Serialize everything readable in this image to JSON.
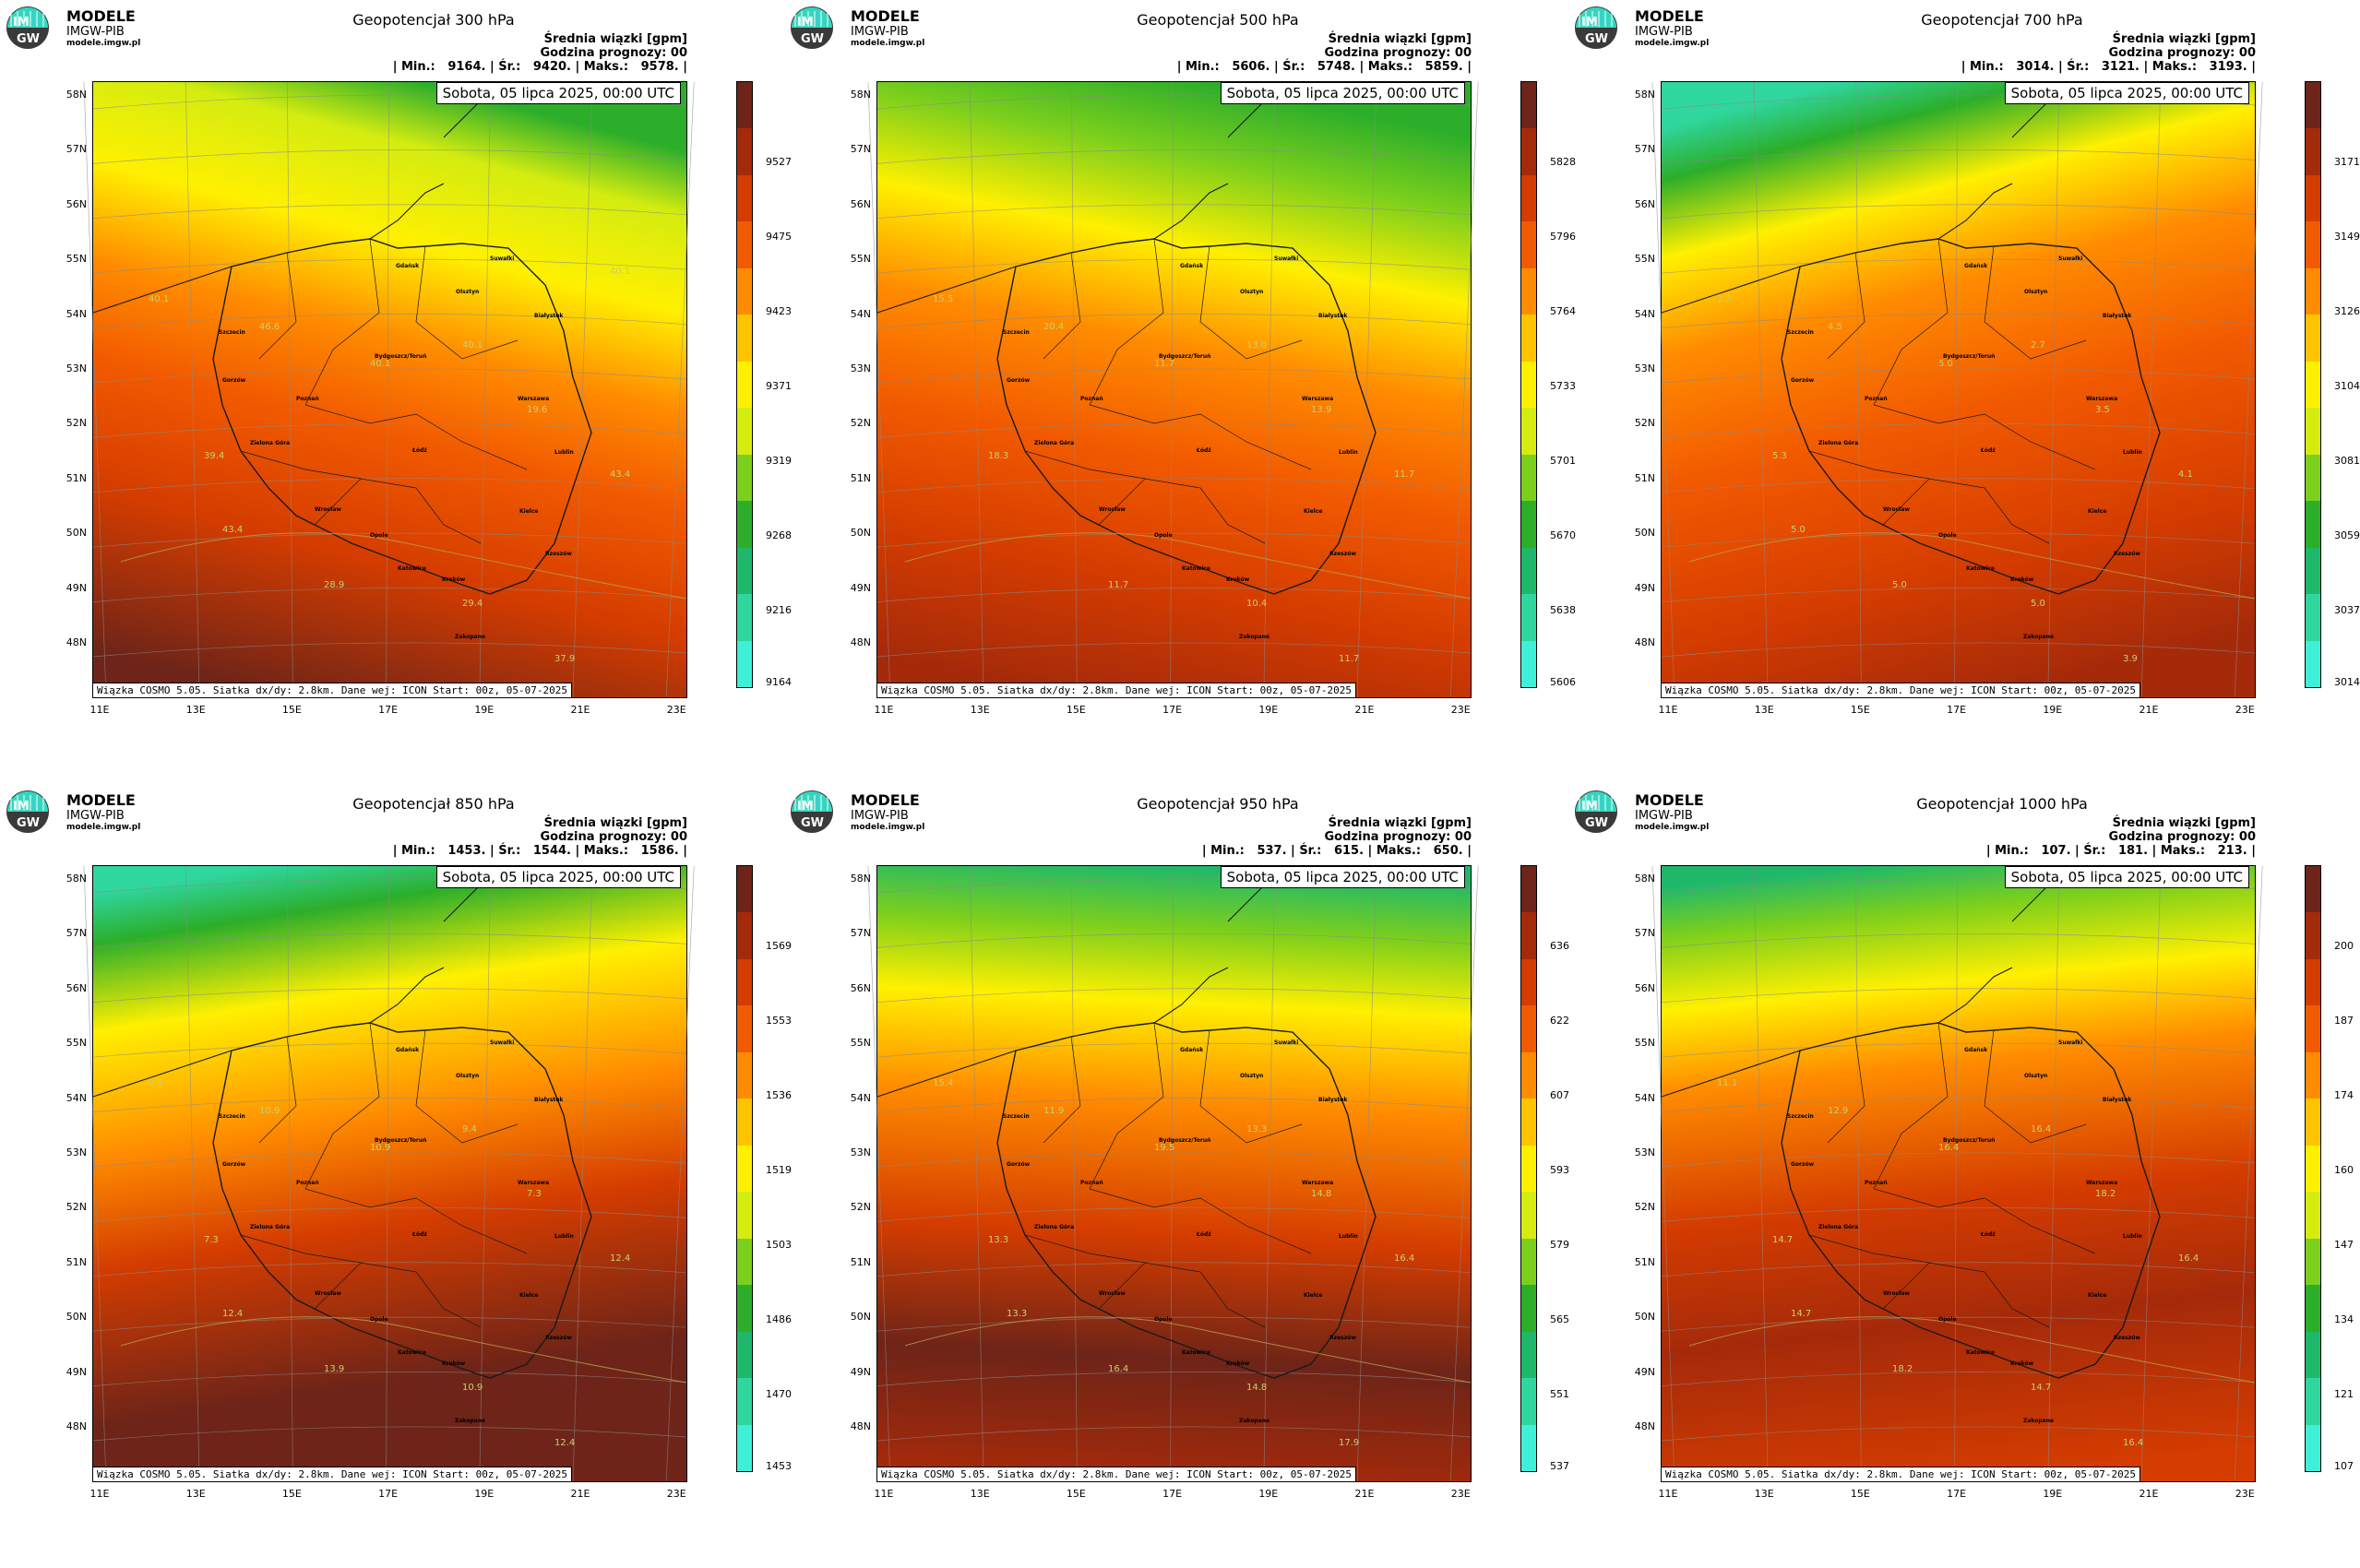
{
  "logo": {
    "line1": "MODELE",
    "line2": "IMGW-PIB",
    "line3": "modele.imgw.pl",
    "emblem_top": "IM",
    "emblem_bottom": "GW"
  },
  "common": {
    "mean_label": "Średnia wiązki [gpm]",
    "forecast_hour": "Godzina prognozy: 00",
    "date": "Sobota, 05 lipca 2025, 00:00 UTC",
    "footer": "Wiązka COSMO 5.05. Siatka dx/dy: 2.8km. Dane wej: ICON Start: 00z, 05-07-2025",
    "lat_labels": [
      "58N",
      "57N",
      "56N",
      "55N",
      "54N",
      "53N",
      "52N",
      "51N",
      "50N",
      "49N",
      "48N"
    ],
    "lon_labels": [
      "11E",
      "13E",
      "15E",
      "17E",
      "19E",
      "21E",
      "23E"
    ],
    "cities": [
      "Gdańsk",
      "Suwałki",
      "Olsztyn",
      "Białystok",
      "Szczecin",
      "Bydgoszcz/Toruń",
      "Gorzów",
      "Poznań",
      "Warszawa",
      "Zielona Góra",
      "Łódź",
      "Lublin",
      "Wrocław",
      "Kielce",
      "Opole",
      "Rzeszów",
      "Katowice",
      "Kraków",
      "Zakopane"
    ]
  },
  "colors": {
    "ramp": [
      "#3ef0d8",
      "#2fd69e",
      "#1fb86a",
      "#2cae2a",
      "#7ccf1c",
      "#d4ec10",
      "#fff000",
      "#ffc400",
      "#ff8c00",
      "#f25a00",
      "#d43c00",
      "#a52a0a",
      "#6e2418"
    ]
  },
  "panels": [
    {
      "title": "Geopotencjał 300 hPa",
      "stats": "| Min.:   9164. | Śr.:   9420. | Maks.:   9578. |",
      "ticks": [
        "9527",
        "9475",
        "9423",
        "9371",
        "9319",
        "9268",
        "9216",
        "9164"
      ],
      "contours": [
        "40.1",
        "39.4",
        "46.6",
        "40.1",
        "19.6",
        "43.4",
        "29.4",
        "37.9",
        "28.9",
        "40.1",
        "43.4",
        "40.1"
      ]
    },
    {
      "title": "Geopotencjał 500 hPa",
      "stats": "| Min.:   5606. | Śr.:   5748. | Maks.:   5859. |",
      "ticks": [
        "5828",
        "5796",
        "5764",
        "5733",
        "5701",
        "5670",
        "5638",
        "5606"
      ],
      "contours": [
        "15.5",
        "18.3",
        "20.4",
        "13.0",
        "13.9",
        "11.7",
        "10.4",
        "11.7",
        "11.7",
        "11.7"
      ]
    },
    {
      "title": "Geopotencjał 700 hPa",
      "stats": "| Min.:   3014. | Śr.:   3121. | Maks.:   3193. |",
      "ticks": [
        "3171",
        "3149",
        "3126",
        "3104",
        "3081",
        "3059",
        "3037",
        "3014"
      ],
      "contours": [
        "3.3",
        "5.3",
        "4.5",
        "2.7",
        "3.5",
        "4.1",
        "5.0",
        "3.9",
        "5.0",
        "5.0",
        "5.0"
      ]
    },
    {
      "title": "Geopotencjał 850 hPa",
      "stats": "| Min.:   1453. | Śr.:   1544. | Maks.:   1586. |",
      "ticks": [
        "1569",
        "1553",
        "1536",
        "1519",
        "1503",
        "1486",
        "1470",
        "1453"
      ],
      "contours": [
        "9.4",
        "7.3",
        "10.9",
        "9.4",
        "7.3",
        "12.4",
        "10.9",
        "12.4",
        "13.9",
        "10.9",
        "12.4"
      ]
    },
    {
      "title": "Geopotencjał 950 hPa",
      "stats": "| Min.:   537. | Śr.:   615. | Maks.:   650. |",
      "ticks": [
        "636",
        "622",
        "607",
        "593",
        "579",
        "565",
        "551",
        "537"
      ],
      "contours": [
        "15.4",
        "13.3",
        "11.9",
        "13.3",
        "14.8",
        "16.4",
        "14.8",
        "17.9",
        "16.4",
        "19.5",
        "13.3"
      ]
    },
    {
      "title": "Geopotencjał 1000 hPa",
      "stats": "| Min.:   107. | Śr.:   181. | Maks.:   213. |",
      "ticks": [
        "200",
        "187",
        "174",
        "160",
        "147",
        "134",
        "121",
        "107"
      ],
      "contours": [
        "11.1",
        "14.7",
        "12.9",
        "16.4",
        "18.2",
        "16.4",
        "14.7",
        "16.4",
        "18.2",
        "16.4",
        "14.7"
      ]
    }
  ]
}
